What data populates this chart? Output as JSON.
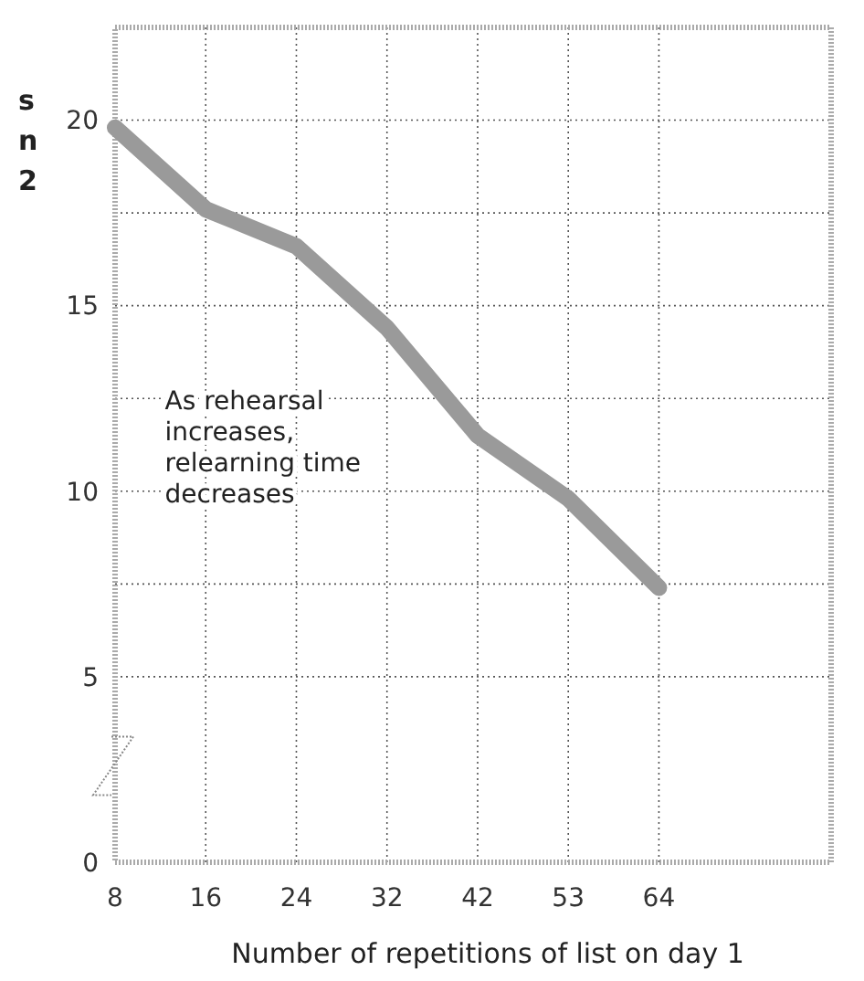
{
  "chart_data": {
    "type": "line",
    "xlabel": "Number of repetitions of list on day 1",
    "ylabel": "s n 2",
    "categories": [
      "8",
      "16",
      "24",
      "32",
      "42",
      "53",
      "64"
    ],
    "series": [
      {
        "color": "#9a9a9a",
        "values": [
          19.8,
          17.6,
          16.6,
          14.4,
          11.5,
          9.8,
          7.4
        ]
      }
    ],
    "ylim": [
      0,
      22.5
    ],
    "yticks": [
      0,
      5,
      {
        "value": 7.5,
        "label": null
      },
      10,
      {
        "value": 12.5,
        "label": null
      },
      15,
      {
        "value": 17.5,
        "label": null
      },
      20
    ],
    "grid": true,
    "marker": "none",
    "line_style": "solid",
    "annotations": [
      "As rehearsal increases, relearning time decreases"
    ]
  }
}
